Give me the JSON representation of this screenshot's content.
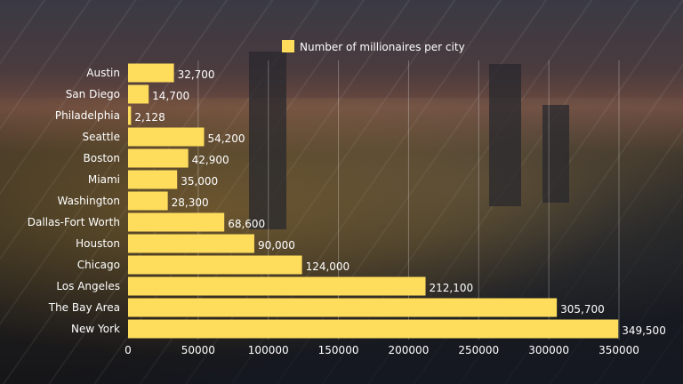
{
  "chart_data": {
    "type": "bar",
    "orientation": "horizontal",
    "legend": {
      "label": "Number of millionaires per city",
      "placement": "top",
      "color": "#FFDD5C"
    },
    "categories": [
      "Austin",
      "San Diego",
      "Philadelphia",
      "Seattle",
      "Boston",
      "Miami",
      "Washington",
      "Dallas-Fort Worth",
      "Houston",
      "Chicago",
      "Los Angeles",
      "The Bay Area",
      "New York"
    ],
    "values": [
      32700,
      14700,
      2128,
      54200,
      42900,
      35000,
      28300,
      68600,
      90000,
      124000,
      212100,
      305700,
      349500
    ],
    "data_labels": [
      "32,700",
      "14,700",
      "2,128",
      "54,200",
      "42,900",
      "35,000",
      "28,300",
      "68,600",
      "90,000",
      "124,000",
      "212,100",
      "305,700",
      "349,500"
    ],
    "xlim": [
      0,
      350000
    ],
    "x_ticks": [
      "0",
      "50000",
      "100000",
      "150000",
      "200000",
      "250000",
      "300000",
      "350000"
    ],
    "grid": true,
    "bar_color": "#FFDD5C",
    "text_color": "#FFFFFF"
  }
}
